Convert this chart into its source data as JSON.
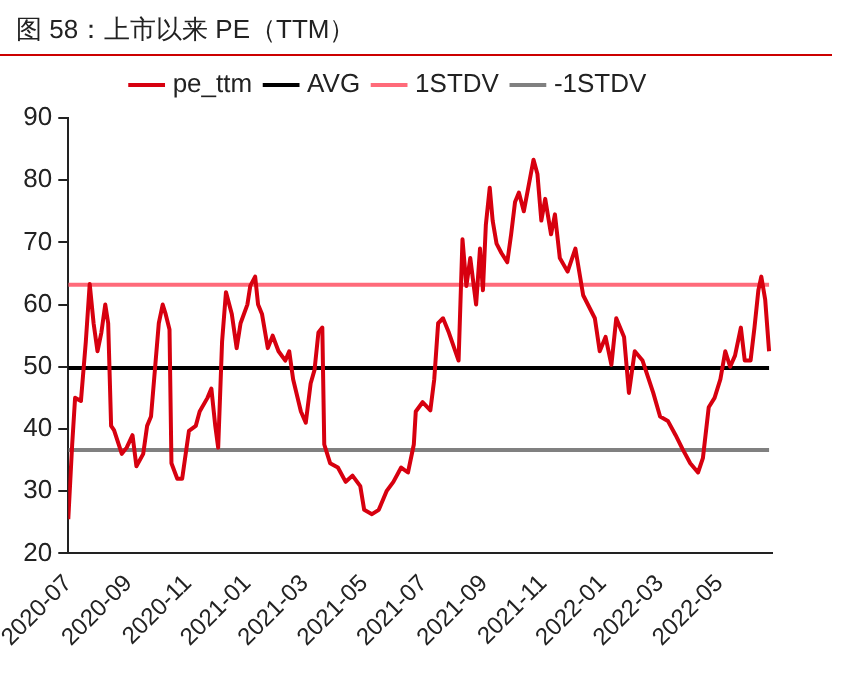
{
  "chart_data": {
    "type": "line",
    "title": "图 58：上市以来 PE（TTM）",
    "xlim": [
      "2020-07-01",
      "2022-06-24"
    ],
    "xticks": [
      "2020-07",
      "2020-09",
      "2020-11",
      "2021-01",
      "2021-03",
      "2021-05",
      "2021-07",
      "2021-09",
      "2021-11",
      "2022-01",
      "2022-03",
      "2022-05"
    ],
    "ylim": [
      20,
      90
    ],
    "yticks": [
      20,
      30,
      40,
      50,
      60,
      70,
      80,
      90
    ],
    "grid": false,
    "legend": "top",
    "marker": "none",
    "line_style": "solid",
    "series": [
      {
        "name": "pe_ttm",
        "color": "#d7000f",
        "x": [
          "2020-07-01",
          "2020-07-05",
          "2020-07-08",
          "2020-07-14",
          "2020-07-19",
          "2020-07-23",
          "2020-07-27",
          "2020-07-31",
          "2020-08-04",
          "2020-08-08",
          "2020-08-11",
          "2020-08-14",
          "2020-08-17",
          "2020-08-25",
          "2020-08-30",
          "2020-09-05",
          "2020-09-09",
          "2020-09-16",
          "2020-09-20",
          "2020-09-24",
          "2020-09-28",
          "2020-10-02",
          "2020-10-06",
          "2020-10-09",
          "2020-10-13",
          "2020-10-15",
          "2020-10-21",
          "2020-10-26",
          "2020-11-02",
          "2020-11-09",
          "2020-11-13",
          "2020-11-21",
          "2020-11-25",
          "2020-11-29",
          "2020-12-02",
          "2020-12-06",
          "2020-12-10",
          "2020-12-16",
          "2020-12-21",
          "2020-12-25",
          "2021-01-01",
          "2021-01-04",
          "2021-01-09",
          "2021-01-12",
          "2021-01-16",
          "2021-01-22",
          "2021-01-27",
          "2021-02-02",
          "2021-02-09",
          "2021-02-13",
          "2021-02-17",
          "2021-02-25",
          "2021-03-02",
          "2021-03-07",
          "2021-03-11",
          "2021-03-15",
          "2021-03-19",
          "2021-03-21",
          "2021-03-27",
          "2021-04-04",
          "2021-04-12",
          "2021-04-19",
          "2021-04-27",
          "2021-05-01",
          "2021-05-09",
          "2021-05-16",
          "2021-05-24",
          "2021-05-31",
          "2021-06-08",
          "2021-06-15",
          "2021-06-21",
          "2021-06-23",
          "2021-06-30",
          "2021-07-08",
          "2021-07-12",
          "2021-07-16",
          "2021-07-21",
          "2021-07-27",
          "2021-08-06",
          "2021-08-10",
          "2021-08-14",
          "2021-08-18",
          "2021-08-24",
          "2021-08-28",
          "2021-08-31",
          "2021-09-03",
          "2021-09-07",
          "2021-09-10",
          "2021-09-14",
          "2021-09-19",
          "2021-09-25",
          "2021-09-29",
          "2021-10-03",
          "2021-10-07",
          "2021-10-12",
          "2021-10-22",
          "2021-10-26",
          "2021-10-30",
          "2021-11-03",
          "2021-11-09",
          "2021-11-13",
          "2021-11-18",
          "2021-11-26",
          "2021-12-04",
          "2021-12-12",
          "2021-12-24",
          "2021-12-29",
          "2022-01-04",
          "2022-01-10",
          "2022-01-15",
          "2022-01-23",
          "2022-01-28",
          "2022-02-03",
          "2022-02-11",
          "2022-02-22",
          "2022-03-01",
          "2022-03-09",
          "2022-03-17",
          "2022-03-24",
          "2022-04-01",
          "2022-04-09",
          "2022-04-14",
          "2022-04-20",
          "2022-04-26",
          "2022-05-02",
          "2022-05-07",
          "2022-05-12",
          "2022-05-17",
          "2022-05-23",
          "2022-05-27",
          "2022-06-02",
          "2022-06-06",
          "2022-06-10",
          "2022-06-13",
          "2022-06-17",
          "2022-06-21"
        ],
        "values": [
          25.5,
          37.5,
          45,
          44.5,
          54,
          63.3,
          57,
          52.5,
          55.5,
          60,
          57,
          40.5,
          39.8,
          36,
          37,
          39,
          34,
          36,
          40.5,
          42,
          49.5,
          57,
          60,
          58.5,
          56,
          34.5,
          32,
          32,
          39.7,
          40.5,
          42.8,
          45,
          46.5,
          40.5,
          37,
          54,
          62,
          58.5,
          53,
          57,
          60,
          63,
          64.5,
          60,
          58.5,
          53,
          55,
          52.5,
          51,
          52.5,
          48,
          42.8,
          41,
          47.3,
          49.5,
          55.5,
          56.3,
          37.5,
          34.5,
          33.8,
          31.5,
          32.5,
          30.8,
          27,
          26.3,
          27,
          30,
          31.5,
          33.8,
          33,
          37.5,
          42.8,
          44.3,
          43,
          48,
          57,
          57.8,
          55.5,
          51,
          70.5,
          63,
          67.5,
          60,
          69,
          62.3,
          72.8,
          78.8,
          73.5,
          69.8,
          68.3,
          66.8,
          71.3,
          76.5,
          78,
          75,
          83.3,
          81,
          73.5,
          77,
          71.3,
          74.5,
          67.5,
          65.3,
          69,
          61.5,
          57.8,
          52.5,
          54.8,
          50.3,
          57.8,
          54.8,
          45.8,
          52.5,
          51,
          45.8,
          42,
          41.3,
          39,
          36.8,
          34.5,
          33,
          35.3,
          43.5,
          45,
          48,
          52.5,
          50,
          51.8,
          56.3,
          51,
          51,
          56.3,
          62.3,
          64.5,
          60.8,
          52.5
        ]
      },
      {
        "name": "AVG",
        "color": "#000000",
        "x": [
          "2020-07-01",
          "2022-06-21"
        ],
        "values": [
          49.8,
          49.8
        ]
      },
      {
        "name": "1STDV",
        "color": "#ff6b7a",
        "x": [
          "2020-07-01",
          "2022-06-21"
        ],
        "values": [
          63.2,
          63.2
        ]
      },
      {
        "name": "-1STDV",
        "color": "#808080",
        "x": [
          "2020-07-01",
          "2022-06-21"
        ],
        "values": [
          36.6,
          36.6
        ]
      }
    ]
  }
}
